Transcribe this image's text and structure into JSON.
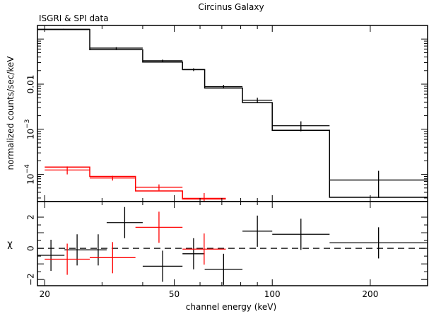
{
  "chart_data": {
    "type": "line",
    "title": "Circinus Galaxy",
    "annotation": "ISGRI & SPI data",
    "xlabel": "channel energy (keV)",
    "xscale": "log",
    "xlim": [
      19,
      300
    ],
    "x_ticks": [
      {
        "value": 20,
        "label": "20"
      },
      {
        "value": 50,
        "label": "50"
      },
      {
        "value": 100,
        "label": "100"
      },
      {
        "value": 200,
        "label": "200"
      }
    ],
    "panels": [
      {
        "name": "spectrum",
        "ylabel": "normalized counts/sec/keV",
        "yscale": "log",
        "ylim": [
          2.5e-05,
          0.2
        ],
        "y_ticks": [
          {
            "value": 0.0001,
            "base": "10",
            "exp": "−4"
          },
          {
            "value": 0.001,
            "base": "10",
            "exp": "−3"
          },
          {
            "value": 0.01,
            "label": "0.01"
          }
        ],
        "series": [
          {
            "color": "#000000",
            "data": [
              {
                "xlo": 19,
                "xhi": 27.5,
                "y": 0.165,
                "yerr": 0.004,
                "model": 0.162
              },
              {
                "xlo": 27.5,
                "xhi": 40,
                "y": 0.063,
                "yerr": 0.003,
                "model": 0.058
              },
              {
                "xlo": 40,
                "xhi": 53,
                "y": 0.033,
                "yerr": 0.002,
                "model": 0.031
              },
              {
                "xlo": 53,
                "xhi": 62,
                "y": 0.021,
                "yerr": 0.0015,
                "model": 0.021
              },
              {
                "xlo": 62,
                "xhi": 81,
                "y": 0.0088,
                "yerr": 0.0008,
                "model": 0.0082
              },
              {
                "xlo": 81,
                "xhi": 100,
                "y": 0.0044,
                "yerr": 0.0006,
                "model": 0.0039
              },
              {
                "xlo": 100,
                "xhi": 150,
                "y": 0.0012,
                "yerr": 0.0003,
                "model": 0.00095
              },
              {
                "xlo": 150,
                "xhi": 300,
                "y": 7.5e-05,
                "yerr": 4.5e-05,
                "model": 3.1e-05
              }
            ]
          },
          {
            "color": "#ff0000",
            "data": [
              {
                "xlo": 20,
                "xhi": 27.5,
                "y": 0.000125,
                "yerr": 2.5e-05,
                "model": 0.000145
              },
              {
                "xlo": 27.5,
                "xhi": 38,
                "y": 8.3e-05,
                "yerr": 1e-05,
                "model": 9e-05
              },
              {
                "xlo": 38,
                "xhi": 53,
                "y": 5.2e-05,
                "yerr": 8e-06,
                "model": 4.3e-05
              },
              {
                "xlo": 53,
                "xhi": 72,
                "y": 2.95e-05,
                "yerr": 9e-06,
                "model": 2.85e-05
              }
            ]
          }
        ]
      },
      {
        "name": "residuals",
        "ylabel": "χ",
        "yscale": "linear",
        "ylim": [
          -2.4,
          3.0
        ],
        "y_ticks": [
          {
            "value": -2,
            "label": "−2"
          },
          {
            "value": 0,
            "label": "0"
          },
          {
            "value": 2,
            "label": "2"
          }
        ],
        "zero_line": "dashed",
        "series": [
          {
            "color": "#000000",
            "data": [
              {
                "xlo": 19,
                "xhi": 23,
                "y": -0.45,
                "yerr": 1.0
              },
              {
                "xlo": 23,
                "xhi": 27.5,
                "y": -0.1,
                "yerr": 1.0
              },
              {
                "xlo": 27.5,
                "xhi": 31,
                "y": -0.1,
                "yerr": 1.0
              },
              {
                "xlo": 31,
                "xhi": 40,
                "y": 1.65,
                "yerr": 1.0
              },
              {
                "xlo": 40,
                "xhi": 53,
                "y": -1.15,
                "yerr": 1.0
              },
              {
                "xlo": 53,
                "xhi": 62,
                "y": -0.35,
                "yerr": 1.0
              },
              {
                "xlo": 62,
                "xhi": 81,
                "y": -1.35,
                "yerr": 1.0
              },
              {
                "xlo": 81,
                "xhi": 100,
                "y": 1.1,
                "yerr": 1.0
              },
              {
                "xlo": 100,
                "xhi": 150,
                "y": 0.9,
                "yerr": 1.0
              },
              {
                "xlo": 150,
                "xhi": 300,
                "y": 0.35,
                "yerr": 1.0
              }
            ]
          },
          {
            "color": "#ff0000",
            "data": [
              {
                "xlo": 20,
                "xhi": 27.5,
                "y": -0.7,
                "yerr": 1.0
              },
              {
                "xlo": 27.5,
                "xhi": 38,
                "y": -0.6,
                "yerr": 1.0
              },
              {
                "xlo": 38,
                "xhi": 53,
                "y": 1.35,
                "yerr": 1.0
              },
              {
                "xlo": 53,
                "xhi": 72,
                "y": -0.05,
                "yerr": 1.0
              }
            ]
          }
        ]
      }
    ]
  }
}
